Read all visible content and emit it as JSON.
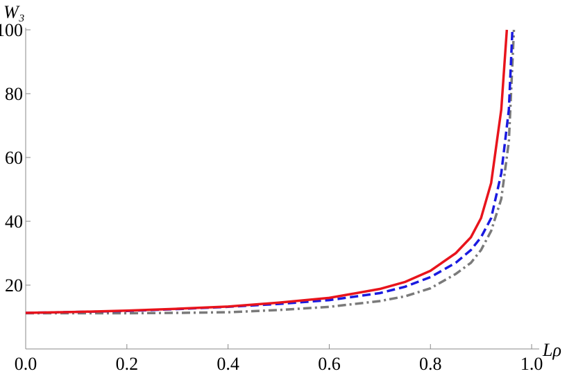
{
  "chart_data": {
    "type": "line",
    "x_label": "Lρ",
    "y_label": "W₃",
    "xlim": [
      0,
      1.015
    ],
    "ylim": [
      0,
      100
    ],
    "xticks": [
      {
        "value": 0,
        "label": "0.0"
      },
      {
        "value": 0.2,
        "label": "0.2"
      },
      {
        "value": 0.4,
        "label": "0.4"
      },
      {
        "value": 0.6,
        "label": "0.6"
      },
      {
        "value": 0.8,
        "label": "0.8"
      },
      {
        "value": 1,
        "label": "1.0"
      }
    ],
    "yticks": [
      20,
      40,
      60,
      80,
      100
    ],
    "series": [
      {
        "color": "#e8141c",
        "dash": "solid",
        "x": [
          0,
          0.1,
          0.2,
          0.3,
          0.4,
          0.5,
          0.6,
          0.7,
          0.75,
          0.8,
          0.85,
          0.88,
          0.9,
          0.92,
          0.94,
          0.951
        ],
        "values": [
          11.3,
          11.6,
          12,
          12.6,
          13.3,
          14.5,
          16,
          18.8,
          21,
          24.5,
          30,
          35,
          41,
          52,
          75,
          100
        ]
      },
      {
        "color": "#1a1ae0",
        "dash": "dash",
        "x": [
          0,
          0.1,
          0.2,
          0.3,
          0.4,
          0.5,
          0.6,
          0.7,
          0.75,
          0.8,
          0.85,
          0.88,
          0.9,
          0.92,
          0.94,
          0.955,
          0.962
        ],
        "values": [
          11.3,
          11.6,
          11.9,
          12.5,
          13.2,
          14.1,
          15.3,
          17.5,
          19.5,
          22.5,
          27,
          31,
          35,
          41,
          55,
          75,
          100
        ]
      },
      {
        "color": "#7a7a7a",
        "dash": "dashdot",
        "x": [
          0,
          0.1,
          0.2,
          0.3,
          0.4,
          0.5,
          0.6,
          0.7,
          0.75,
          0.8,
          0.85,
          0.88,
          0.9,
          0.92,
          0.94,
          0.955,
          0.965
        ],
        "values": [
          11.2,
          11.2,
          11.2,
          11.3,
          11.5,
          12.2,
          13.2,
          15,
          16.5,
          19,
          23.5,
          27,
          31,
          37,
          47,
          65,
          100
        ]
      }
    ]
  }
}
